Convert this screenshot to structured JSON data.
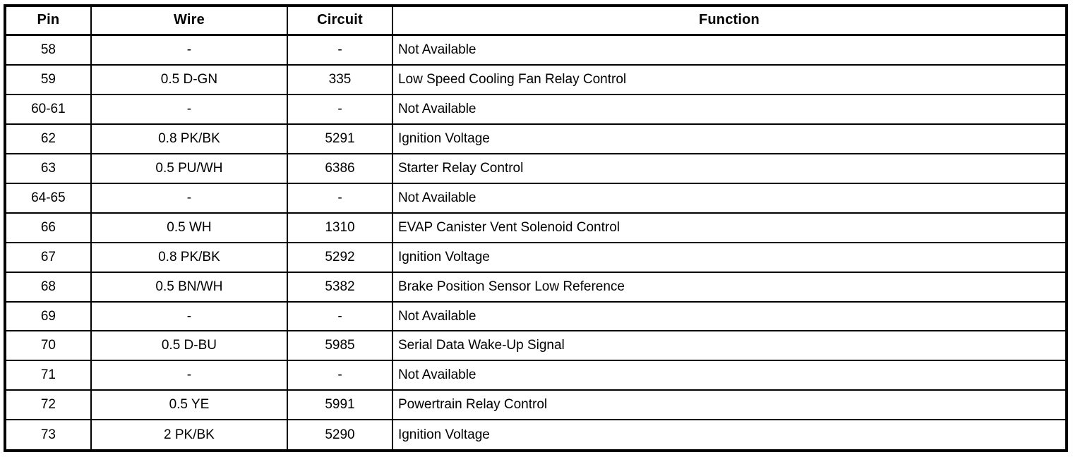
{
  "table": {
    "columns": [
      {
        "label": "Pin",
        "align": "center"
      },
      {
        "label": "Wire",
        "align": "center"
      },
      {
        "label": "Circuit",
        "align": "center"
      },
      {
        "label": "Function",
        "align": "left"
      }
    ],
    "rows": [
      [
        "58",
        "-",
        "-",
        "Not Available"
      ],
      [
        "59",
        "0.5 D-GN",
        "335",
        "Low Speed Cooling Fan Relay Control"
      ],
      [
        "60-61",
        "-",
        "-",
        "Not Available"
      ],
      [
        "62",
        "0.8 PK/BK",
        "5291",
        "Ignition Voltage"
      ],
      [
        "63",
        "0.5 PU/WH",
        "6386",
        "Starter Relay Control"
      ],
      [
        "64-65",
        "-",
        "-",
        "Not Available"
      ],
      [
        "66",
        "0.5 WH",
        "1310",
        "EVAP Canister Vent Solenoid Control"
      ],
      [
        "67",
        "0.8 PK/BK",
        "5292",
        "Ignition Voltage"
      ],
      [
        "68",
        "0.5 BN/WH",
        "5382",
        "Brake Position Sensor Low Reference"
      ],
      [
        "69",
        "-",
        "-",
        "Not Available"
      ],
      [
        "70",
        "0.5 D-BU",
        "5985",
        "Serial Data Wake-Up Signal"
      ],
      [
        "71",
        "-",
        "-",
        "Not Available"
      ],
      [
        "72",
        "0.5 YE",
        "5991",
        "Powertrain Relay Control"
      ],
      [
        "73",
        "2 PK/BK",
        "5290",
        "Ignition Voltage"
      ]
    ],
    "colors": {
      "border": "#000000",
      "background": "#ffffff",
      "text": "#000000"
    }
  }
}
